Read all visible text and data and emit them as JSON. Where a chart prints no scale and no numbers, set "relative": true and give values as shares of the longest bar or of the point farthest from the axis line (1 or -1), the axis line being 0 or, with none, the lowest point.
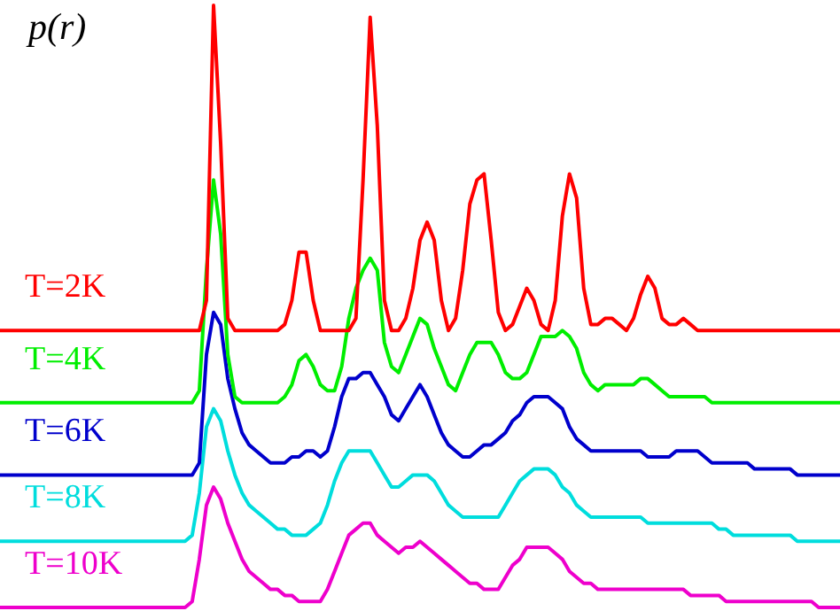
{
  "chart_data": {
    "type": "line",
    "ylabel": "p(r)",
    "relative": true,
    "legend": false,
    "categories": [
      null,
      null,
      null,
      null,
      null,
      null,
      null,
      null,
      null,
      null,
      null,
      null,
      null,
      null,
      null,
      null,
      null,
      null,
      null,
      null,
      null,
      null,
      null,
      null,
      null,
      null,
      null,
      null,
      null,
      null,
      null,
      null,
      null,
      null,
      null,
      null,
      null,
      null,
      null,
      null,
      null,
      null,
      null,
      null,
      null,
      null,
      null,
      null,
      null,
      null,
      null,
      null,
      null,
      null,
      null,
      null,
      null,
      null,
      null,
      null,
      null,
      null,
      null,
      null,
      null,
      null,
      null,
      null,
      null,
      null,
      null,
      null,
      null,
      null,
      null,
      null,
      null,
      null,
      null,
      null,
      null,
      null,
      null,
      null,
      null,
      null,
      null,
      null,
      null,
      null,
      null,
      null,
      null,
      null,
      null,
      null,
      null,
      null,
      null,
      null,
      null,
      null,
      null,
      null,
      null,
      null,
      null,
      null,
      null,
      null,
      null,
      null,
      null,
      null,
      null,
      null,
      null,
      null,
      null
    ],
    "series": [
      {
        "name": "T=2K",
        "color": "#ff0000",
        "values": [
          0.46,
          0.46,
          0.46,
          0.46,
          0.46,
          0.46,
          0.46,
          0.46,
          0.46,
          0.46,
          0.46,
          0.46,
          0.46,
          0.46,
          0.46,
          0.46,
          0.46,
          0.46,
          0.46,
          0.46,
          0.46,
          0.46,
          0.46,
          0.46,
          0.46,
          0.46,
          0.46,
          0.46,
          0.46,
          0.51,
          1.0,
          0.77,
          0.48,
          0.46,
          0.46,
          0.46,
          0.46,
          0.46,
          0.46,
          0.46,
          0.47,
          0.51,
          0.59,
          0.59,
          0.51,
          0.46,
          0.46,
          0.46,
          0.46,
          0.46,
          0.48,
          0.71,
          0.98,
          0.8,
          0.51,
          0.46,
          0.46,
          0.48,
          0.53,
          0.61,
          0.64,
          0.61,
          0.51,
          0.46,
          0.48,
          0.56,
          0.67,
          0.71,
          0.72,
          0.61,
          0.49,
          0.46,
          0.47,
          0.5,
          0.53,
          0.51,
          0.47,
          0.46,
          0.51,
          0.65,
          0.72,
          0.68,
          0.53,
          0.47,
          0.47,
          0.48,
          0.48,
          0.47,
          0.46,
          0.48,
          0.52,
          0.55,
          0.53,
          0.48,
          0.47,
          0.47,
          0.48,
          0.47,
          0.46,
          0.46,
          0.46,
          0.46,
          0.46,
          0.46,
          0.46,
          0.46,
          0.46,
          0.46,
          0.46,
          0.46,
          0.46,
          0.46,
          0.46,
          0.46,
          0.46,
          0.46,
          0.46,
          0.46,
          0.46
        ]
      },
      {
        "name": "T=4K",
        "color": "#00ee00",
        "values": [
          0.34,
          0.34,
          0.34,
          0.34,
          0.34,
          0.34,
          0.34,
          0.34,
          0.34,
          0.34,
          0.34,
          0.34,
          0.34,
          0.34,
          0.34,
          0.34,
          0.34,
          0.34,
          0.34,
          0.34,
          0.34,
          0.34,
          0.34,
          0.34,
          0.34,
          0.34,
          0.34,
          0.34,
          0.36,
          0.56,
          0.71,
          0.62,
          0.42,
          0.35,
          0.34,
          0.34,
          0.34,
          0.34,
          0.34,
          0.34,
          0.35,
          0.37,
          0.41,
          0.42,
          0.4,
          0.37,
          0.36,
          0.36,
          0.4,
          0.48,
          0.53,
          0.56,
          0.58,
          0.56,
          0.44,
          0.4,
          0.39,
          0.42,
          0.45,
          0.48,
          0.47,
          0.43,
          0.4,
          0.37,
          0.36,
          0.39,
          0.42,
          0.44,
          0.44,
          0.44,
          0.42,
          0.39,
          0.38,
          0.38,
          0.39,
          0.42,
          0.45,
          0.45,
          0.45,
          0.46,
          0.45,
          0.43,
          0.39,
          0.37,
          0.36,
          0.37,
          0.37,
          0.37,
          0.37,
          0.37,
          0.38,
          0.38,
          0.37,
          0.36,
          0.35,
          0.35,
          0.35,
          0.35,
          0.35,
          0.35,
          0.34,
          0.34,
          0.34,
          0.34,
          0.34,
          0.34,
          0.34,
          0.34,
          0.34,
          0.34,
          0.34,
          0.34,
          0.34,
          0.34,
          0.34,
          0.34,
          0.34,
          0.34,
          0.34
        ]
      },
      {
        "name": "T=6K",
        "color": "#0000cc",
        "values": [
          0.22,
          0.22,
          0.22,
          0.22,
          0.22,
          0.22,
          0.22,
          0.22,
          0.22,
          0.22,
          0.22,
          0.22,
          0.22,
          0.22,
          0.22,
          0.22,
          0.22,
          0.22,
          0.22,
          0.22,
          0.22,
          0.22,
          0.22,
          0.22,
          0.22,
          0.22,
          0.22,
          0.22,
          0.24,
          0.42,
          0.49,
          0.47,
          0.38,
          0.33,
          0.29,
          0.27,
          0.26,
          0.25,
          0.24,
          0.24,
          0.24,
          0.25,
          0.25,
          0.26,
          0.26,
          0.25,
          0.26,
          0.3,
          0.35,
          0.38,
          0.38,
          0.39,
          0.39,
          0.37,
          0.35,
          0.32,
          0.31,
          0.33,
          0.35,
          0.37,
          0.35,
          0.32,
          0.29,
          0.27,
          0.26,
          0.25,
          0.25,
          0.26,
          0.27,
          0.27,
          0.28,
          0.29,
          0.31,
          0.32,
          0.34,
          0.35,
          0.35,
          0.35,
          0.34,
          0.33,
          0.3,
          0.28,
          0.27,
          0.26,
          0.26,
          0.26,
          0.26,
          0.26,
          0.26,
          0.26,
          0.26,
          0.25,
          0.25,
          0.25,
          0.25,
          0.26,
          0.26,
          0.26,
          0.26,
          0.25,
          0.24,
          0.24,
          0.24,
          0.24,
          0.24,
          0.24,
          0.23,
          0.23,
          0.23,
          0.23,
          0.23,
          0.23,
          0.22,
          0.22,
          0.22,
          0.22,
          0.22,
          0.22,
          0.22
        ]
      },
      {
        "name": "T=8K",
        "color": "#00dddd",
        "values": [
          0.11,
          0.11,
          0.11,
          0.11,
          0.11,
          0.11,
          0.11,
          0.11,
          0.11,
          0.11,
          0.11,
          0.11,
          0.11,
          0.11,
          0.11,
          0.11,
          0.11,
          0.11,
          0.11,
          0.11,
          0.11,
          0.11,
          0.11,
          0.11,
          0.11,
          0.11,
          0.11,
          0.12,
          0.19,
          0.3,
          0.33,
          0.31,
          0.26,
          0.22,
          0.19,
          0.17,
          0.16,
          0.15,
          0.14,
          0.13,
          0.13,
          0.12,
          0.12,
          0.12,
          0.13,
          0.14,
          0.17,
          0.21,
          0.24,
          0.26,
          0.26,
          0.26,
          0.26,
          0.24,
          0.22,
          0.2,
          0.2,
          0.21,
          0.22,
          0.22,
          0.22,
          0.21,
          0.19,
          0.17,
          0.16,
          0.15,
          0.15,
          0.15,
          0.15,
          0.15,
          0.15,
          0.17,
          0.19,
          0.21,
          0.22,
          0.23,
          0.23,
          0.23,
          0.22,
          0.2,
          0.19,
          0.17,
          0.16,
          0.15,
          0.15,
          0.15,
          0.15,
          0.15,
          0.15,
          0.15,
          0.15,
          0.14,
          0.14,
          0.14,
          0.14,
          0.14,
          0.14,
          0.14,
          0.14,
          0.14,
          0.14,
          0.13,
          0.13,
          0.12,
          0.12,
          0.12,
          0.12,
          0.12,
          0.12,
          0.12,
          0.12,
          0.12,
          0.11,
          0.11,
          0.11,
          0.11,
          0.11,
          0.11,
          0.11
        ]
      },
      {
        "name": "T=10K",
        "color": "#ee00cc",
        "values": [
          0,
          0,
          0,
          0,
          0,
          0,
          0,
          0,
          0,
          0,
          0,
          0,
          0,
          0,
          0,
          0,
          0,
          0,
          0,
          0,
          0,
          0,
          0,
          0,
          0,
          0,
          0,
          0.01,
          0.08,
          0.17,
          0.2,
          0.18,
          0.14,
          0.11,
          0.08,
          0.06,
          0.05,
          0.04,
          0.03,
          0.03,
          0.02,
          0.02,
          0.01,
          0.01,
          0.01,
          0.01,
          0.03,
          0.06,
          0.09,
          0.12,
          0.13,
          0.14,
          0.14,
          0.12,
          0.11,
          0.1,
          0.09,
          0.1,
          0.1,
          0.11,
          0.1,
          0.09,
          0.08,
          0.07,
          0.06,
          0.05,
          0.04,
          0.04,
          0.03,
          0.03,
          0.03,
          0.05,
          0.07,
          0.08,
          0.1,
          0.1,
          0.1,
          0.1,
          0.09,
          0.08,
          0.06,
          0.05,
          0.04,
          0.04,
          0.03,
          0.03,
          0.03,
          0.03,
          0.03,
          0.03,
          0.03,
          0.03,
          0.03,
          0.03,
          0.03,
          0.03,
          0.03,
          0.02,
          0.02,
          0.02,
          0.02,
          0.02,
          0.01,
          0.01,
          0.01,
          0.01,
          0.01,
          0.01,
          0.01,
          0.01,
          0.01,
          0.01,
          0.01,
          0.01,
          0.01,
          0,
          0,
          0,
          0
        ]
      }
    ]
  }
}
